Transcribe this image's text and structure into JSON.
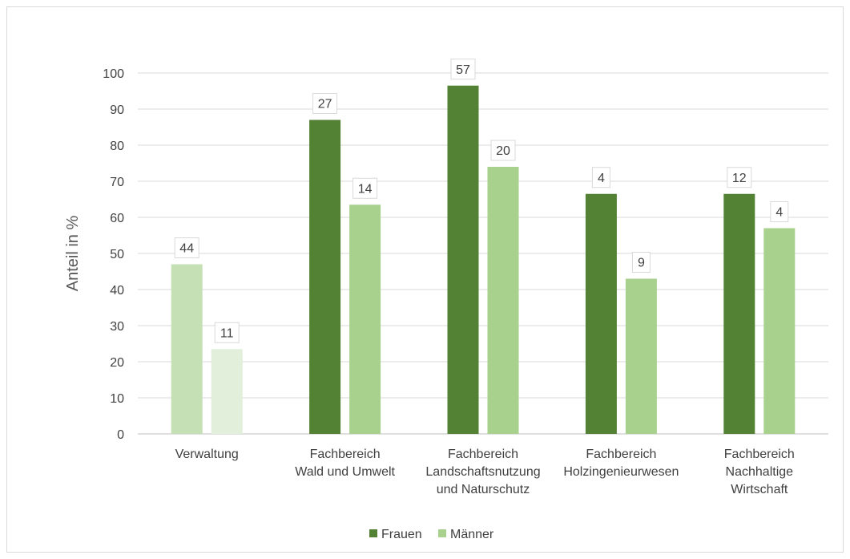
{
  "chart_data": {
    "type": "bar",
    "categories": [
      [
        "Verwaltung"
      ],
      [
        "Fachbereich",
        "Wald und Umwelt"
      ],
      [
        "Fachbereich",
        "Landschaftsnutzung",
        "und Naturschutz"
      ],
      [
        "Fachbereich",
        "Holzingenieurwesen"
      ],
      [
        "Fachbereich",
        "Nachhaltige",
        "Wirtschaft"
      ]
    ],
    "series": [
      {
        "name": "Frauen",
        "values": [
          47,
          87,
          96.5,
          66.5,
          66.5
        ],
        "data_labels": [
          "44",
          "27",
          "57",
          "4",
          "12"
        ]
      },
      {
        "name": "Männer",
        "values": [
          23.5,
          63.5,
          74,
          43,
          57
        ],
        "data_labels": [
          "11",
          "14",
          "20",
          "9",
          "4"
        ]
      }
    ],
    "ylabel": "Anteil in %",
    "ylim": [
      0,
      100
    ],
    "yticks": [
      0,
      10,
      20,
      30,
      40,
      50,
      60,
      70,
      80,
      90,
      100
    ],
    "grid": true,
    "legend_position": "bottom",
    "colors": {
      "frauen": "#548235",
      "maenner": "#a9d18e",
      "verwaltung_frauen": "#c5e0b4",
      "verwaltung_maenner": "#e2efda",
      "grid": "#d9d9d9",
      "text": "#404040",
      "label_border": "#d9d9d9"
    }
  }
}
